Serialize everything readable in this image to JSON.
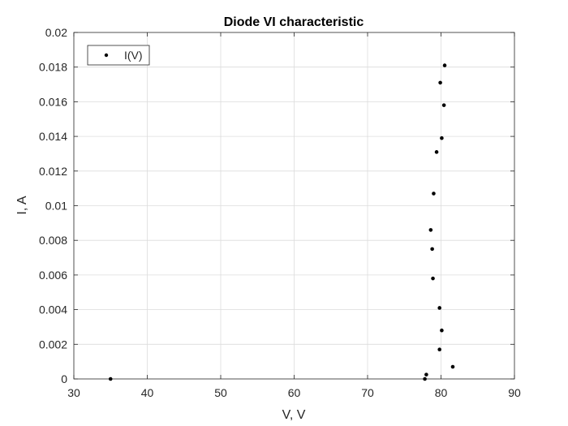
{
  "chart_data": {
    "type": "scatter",
    "title": "Diode VI characteristic",
    "xlabel": "V, V",
    "ylabel": "I, A",
    "xlim": [
      30,
      90
    ],
    "ylim": [
      0,
      0.02
    ],
    "x_ticks": [
      30,
      40,
      50,
      60,
      70,
      80,
      90
    ],
    "y_ticks": [
      0,
      0.002,
      0.004,
      0.006,
      0.008,
      0.01,
      0.012,
      0.014,
      0.016,
      0.018,
      0.02
    ],
    "x_tick_labels": [
      "30",
      "40",
      "50",
      "60",
      "70",
      "80",
      "90"
    ],
    "y_tick_labels": [
      "0",
      "0.002",
      "0.004",
      "0.006",
      "0.008",
      "0.01",
      "0.012",
      "0.014",
      "0.016",
      "0.018",
      "0.02"
    ],
    "grid": true,
    "legend_position": "top-left",
    "marker_color": "#000000",
    "series": [
      {
        "name": "I(V)",
        "points": [
          {
            "x": 35.0,
            "y": 0.0
          },
          {
            "x": 77.8,
            "y": 0.0
          },
          {
            "x": 78.0,
            "y": 0.00025
          },
          {
            "x": 81.6,
            "y": 0.0007
          },
          {
            "x": 79.8,
            "y": 0.0017
          },
          {
            "x": 80.1,
            "y": 0.0028
          },
          {
            "x": 79.8,
            "y": 0.0041
          },
          {
            "x": 78.9,
            "y": 0.0058
          },
          {
            "x": 78.8,
            "y": 0.0075
          },
          {
            "x": 78.6,
            "y": 0.0086
          },
          {
            "x": 79.0,
            "y": 0.0107
          },
          {
            "x": 79.4,
            "y": 0.0131
          },
          {
            "x": 80.1,
            "y": 0.0139
          },
          {
            "x": 80.4,
            "y": 0.0158
          },
          {
            "x": 79.9,
            "y": 0.0171
          },
          {
            "x": 80.5,
            "y": 0.0181
          }
        ]
      }
    ]
  }
}
